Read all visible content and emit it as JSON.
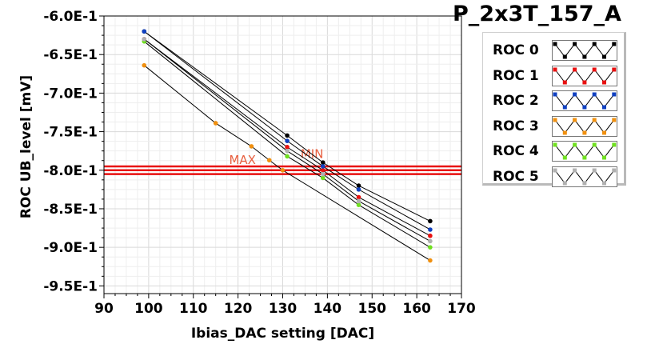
{
  "chart_data": {
    "type": "line",
    "title": "P_2x3T_157_A",
    "xlabel": "Ibias_DAC setting [DAC]",
    "ylabel": "ROC UB_level [mV]",
    "xlim": [
      90,
      170
    ],
    "ylim": [
      -0.96,
      -0.6
    ],
    "x_ticks": [
      90,
      100,
      110,
      120,
      130,
      140,
      150,
      160,
      170
    ],
    "y_ticks": [
      -0.6,
      -0.65,
      -0.7,
      -0.75,
      -0.8,
      -0.85,
      -0.9,
      -0.95
    ],
    "y_tick_labels": [
      "-6.0E-1",
      "-6.5E-1",
      "-7.0E-1",
      "-7.5E-1",
      "-8.0E-1",
      "-8.5E-1",
      "-9.0E-1",
      "-9.5E-1"
    ],
    "grid": true,
    "legend_position": "top-right",
    "series": [
      {
        "name": "ROC 0",
        "color": "#000000",
        "x": [
          99,
          131,
          139,
          147,
          163
        ],
        "y": [
          -0.62,
          -0.755,
          -0.79,
          -0.82,
          -0.866
        ]
      },
      {
        "name": "ROC 1",
        "color": "#e81010",
        "x": [
          99,
          131,
          139,
          147,
          163
        ],
        "y": [
          -0.63,
          -0.77,
          -0.8,
          -0.835,
          -0.885
        ]
      },
      {
        "name": "ROC 2",
        "color": "#1040c0",
        "x": [
          99,
          131,
          139,
          147,
          163
        ],
        "y": [
          -0.62,
          -0.762,
          -0.795,
          -0.825,
          -0.877
        ]
      },
      {
        "name": "ROC 3",
        "color": "#f09010",
        "x": [
          99,
          115,
          123,
          127,
          130,
          163
        ],
        "y": [
          -0.664,
          -0.739,
          -0.769,
          -0.787,
          -0.8,
          -0.917
        ]
      },
      {
        "name": "ROC 4",
        "color": "#70e020",
        "x": [
          99,
          131,
          139,
          147,
          163
        ],
        "y": [
          -0.633,
          -0.782,
          -0.81,
          -0.845,
          -0.9
        ]
      },
      {
        "name": "ROC 5",
        "color": "#b0b0b0",
        "x": [
          99,
          131,
          139,
          147,
          163
        ],
        "y": [
          -0.63,
          -0.775,
          -0.805,
          -0.84,
          -0.892
        ]
      }
    ],
    "reference_lines": [
      {
        "label": "MAX",
        "y": -0.795,
        "color": "#e81010"
      },
      {
        "label": "MIN",
        "y": -0.8,
        "color": "#e81010"
      },
      {
        "label": "",
        "y": -0.805,
        "color": "#e81010"
      }
    ],
    "annotations": [
      {
        "text": "MAX",
        "x": 118,
        "y": -0.792
      },
      {
        "text": "MIN",
        "x": 134,
        "y": -0.784
      }
    ]
  }
}
